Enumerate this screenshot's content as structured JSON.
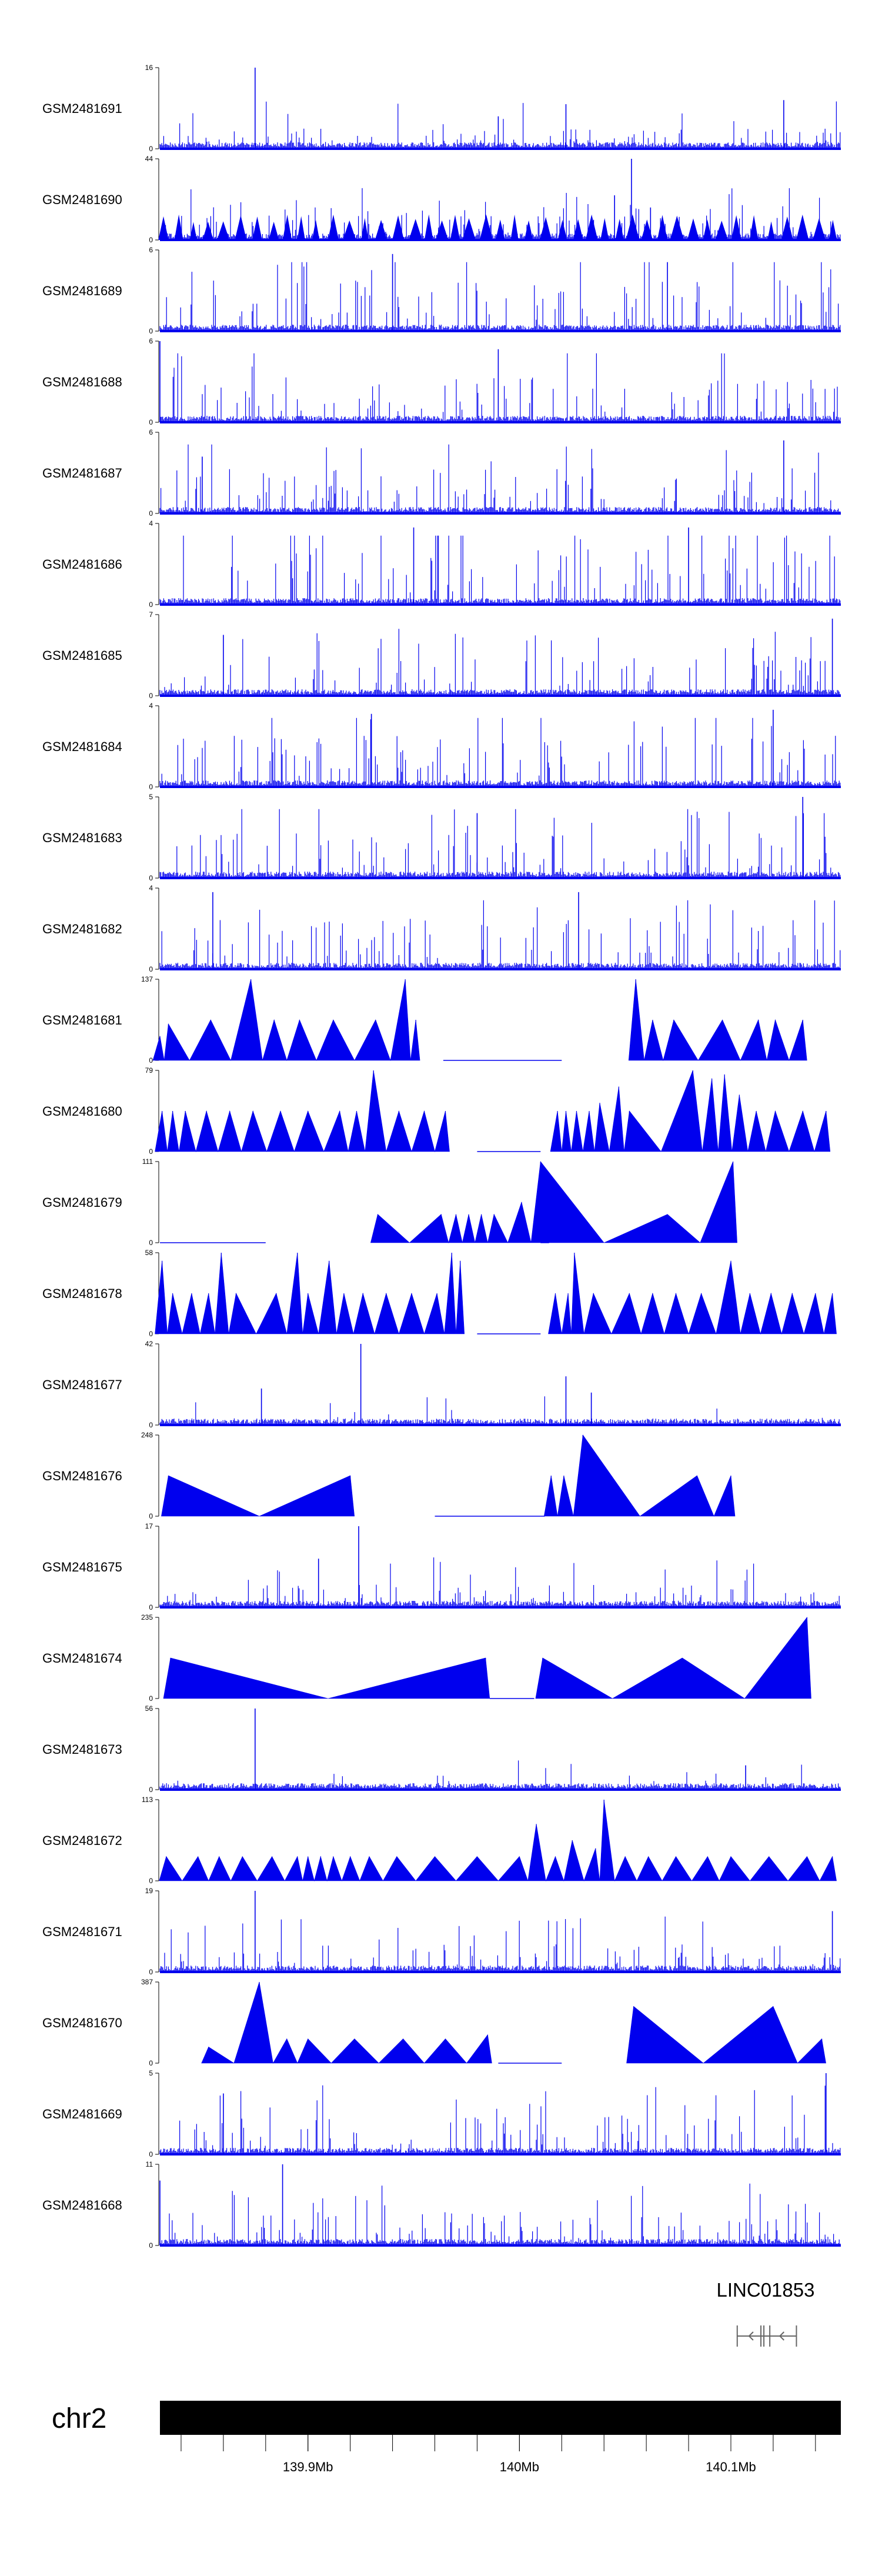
{
  "colors": {
    "signal": "#0000ee",
    "axis": "#000000",
    "ideogram": "#000000",
    "gene": "#666666",
    "background": "#ffffff"
  },
  "gene": {
    "name": "LINC01853",
    "start_mb": 140.103,
    "end_mb": 140.131
  },
  "chromosome": {
    "name": "chr2"
  },
  "chart_data": {
    "type": "area",
    "xlabel": "",
    "xlim_mb": [
      139.83,
      140.152
    ],
    "x_ticks": [
      {
        "value": 139.9,
        "label": "139.9Mb"
      },
      {
        "value": 140.0,
        "label": "140Mb"
      },
      {
        "value": 140.1,
        "label": "140.1Mb"
      }
    ],
    "minor_ticks_mb": [
      139.84,
      139.86,
      139.88,
      139.9,
      139.92,
      139.94,
      139.96,
      139.98,
      140.0,
      140.02,
      140.04,
      140.06,
      140.08,
      140.1,
      140.12,
      140.14
    ],
    "tracks": [
      {
        "name": "GSM2481691",
        "ymax": "16",
        "ymin": "0",
        "style": "dense",
        "level": 0.18,
        "peaks": [
          {
            "x": 139.875,
            "y": 1.0
          },
          {
            "x": 140.022,
            "y": 0.55
          },
          {
            "x": 140.125,
            "y": 0.6
          },
          {
            "x": 139.99,
            "y": 0.4
          }
        ]
      },
      {
        "name": "GSM2481690",
        "ymax": "44",
        "ymin": "0",
        "style": "mixed",
        "level": 0.22,
        "peaks": [
          {
            "x": 140.053,
            "y": 1.0
          },
          {
            "x": 140.045,
            "y": 0.55
          },
          {
            "x": 140.062,
            "y": 0.4
          }
        ]
      },
      {
        "name": "GSM2481689",
        "ymax": "6",
        "ymin": "0",
        "style": "dense",
        "level": 0.45,
        "peaks": [
          {
            "x": 139.94,
            "y": 0.95
          },
          {
            "x": 140.07,
            "y": 0.85
          }
        ]
      },
      {
        "name": "GSM2481688",
        "ymax": "6",
        "ymin": "0",
        "style": "dense",
        "level": 0.42,
        "peaks": [
          {
            "x": 139.83,
            "y": 1.0
          },
          {
            "x": 139.99,
            "y": 0.9
          }
        ]
      },
      {
        "name": "GSM2481687",
        "ymax": "6",
        "ymin": "0",
        "style": "dense",
        "level": 0.4,
        "peaks": [
          {
            "x": 140.125,
            "y": 0.9
          },
          {
            "x": 139.85,
            "y": 0.7
          }
        ]
      },
      {
        "name": "GSM2481686",
        "ymax": "4",
        "ymin": "0",
        "style": "dense",
        "level": 0.5,
        "peaks": [
          {
            "x": 139.95,
            "y": 0.95
          },
          {
            "x": 140.08,
            "y": 0.95
          }
        ]
      },
      {
        "name": "GSM2481685",
        "ymax": "7",
        "ymin": "0",
        "style": "dense",
        "level": 0.35,
        "peaks": [
          {
            "x": 140.148,
            "y": 0.95
          },
          {
            "x": 139.86,
            "y": 0.75
          }
        ]
      },
      {
        "name": "GSM2481684",
        "ymax": "4",
        "ymin": "0",
        "style": "dense",
        "level": 0.45,
        "peaks": [
          {
            "x": 140.12,
            "y": 0.95
          },
          {
            "x": 139.93,
            "y": 0.9
          }
        ]
      },
      {
        "name": "GSM2481683",
        "ymax": "5",
        "ymin": "0",
        "style": "dense",
        "level": 0.4,
        "peaks": [
          {
            "x": 140.134,
            "y": 1.0
          },
          {
            "x": 139.98,
            "y": 0.8
          }
        ]
      },
      {
        "name": "GSM2481682",
        "ymax": "4",
        "ymin": "0",
        "style": "dense",
        "level": 0.45,
        "peaks": [
          {
            "x": 139.855,
            "y": 0.95
          },
          {
            "x": 140.028,
            "y": 0.95
          }
        ]
      },
      {
        "name": "GSM2481681",
        "ymax": "137",
        "ymin": "0",
        "style": "triangles",
        "level": 0,
        "peaks": [
          {
            "x": 139.83,
            "y": 0.3
          },
          {
            "x": 139.834,
            "y": 0.45
          },
          {
            "x": 139.854,
            "y": 0.5
          },
          {
            "x": 139.873,
            "y": 1.0
          },
          {
            "x": 139.884,
            "y": 0.5
          },
          {
            "x": 139.896,
            "y": 0.5
          },
          {
            "x": 139.912,
            "y": 0.5
          },
          {
            "x": 139.932,
            "y": 0.5
          },
          {
            "x": 139.946,
            "y": 1.0
          },
          {
            "x": 139.951,
            "y": 0.5
          },
          {
            "x": 140.055,
            "y": 1.0
          },
          {
            "x": 140.063,
            "y": 0.5
          },
          {
            "x": 140.073,
            "y": 0.5
          },
          {
            "x": 140.096,
            "y": 0.5
          },
          {
            "x": 140.113,
            "y": 0.5
          },
          {
            "x": 140.121,
            "y": 0.5
          },
          {
            "x": 140.134,
            "y": 0.5
          }
        ],
        "gaps": [
          [
            139.964,
            140.02
          ]
        ]
      },
      {
        "name": "GSM2481680",
        "ymax": "79",
        "ymin": "0",
        "style": "triangles",
        "level": 0,
        "peaks": [
          {
            "x": 139.831,
            "y": 0.5
          },
          {
            "x": 139.836,
            "y": 0.5
          },
          {
            "x": 139.842,
            "y": 0.5
          },
          {
            "x": 139.852,
            "y": 0.5
          },
          {
            "x": 139.863,
            "y": 0.5
          },
          {
            "x": 139.874,
            "y": 0.5
          },
          {
            "x": 139.887,
            "y": 0.5
          },
          {
            "x": 139.9,
            "y": 0.5
          },
          {
            "x": 139.915,
            "y": 0.5
          },
          {
            "x": 139.923,
            "y": 0.5
          },
          {
            "x": 139.931,
            "y": 1.0
          },
          {
            "x": 139.943,
            "y": 0.5
          },
          {
            "x": 139.955,
            "y": 0.5
          },
          {
            "x": 139.965,
            "y": 0.5
          },
          {
            "x": 140.018,
            "y": 0.5
          },
          {
            "x": 140.022,
            "y": 0.5
          },
          {
            "x": 140.027,
            "y": 0.5
          },
          {
            "x": 140.033,
            "y": 0.5
          },
          {
            "x": 140.038,
            "y": 0.6
          },
          {
            "x": 140.047,
            "y": 0.8
          },
          {
            "x": 140.052,
            "y": 0.5
          },
          {
            "x": 140.082,
            "y": 1.0
          },
          {
            "x": 140.091,
            "y": 0.9
          },
          {
            "x": 140.097,
            "y": 0.95
          },
          {
            "x": 140.104,
            "y": 0.7
          },
          {
            "x": 140.112,
            "y": 0.5
          },
          {
            "x": 140.121,
            "y": 0.5
          },
          {
            "x": 140.134,
            "y": 0.5
          },
          {
            "x": 140.145,
            "y": 0.5
          }
        ],
        "gaps": [
          [
            139.98,
            140.01
          ]
        ]
      },
      {
        "name": "GSM2481679",
        "ymax": "111",
        "ymin": "0",
        "style": "triangles",
        "level": 0,
        "peaks": [
          {
            "x": 139.933,
            "y": 0.35
          },
          {
            "x": 139.963,
            "y": 0.35
          },
          {
            "x": 139.97,
            "y": 0.35
          },
          {
            "x": 139.976,
            "y": 0.35
          },
          {
            "x": 139.982,
            "y": 0.35
          },
          {
            "x": 139.988,
            "y": 0.35
          },
          {
            "x": 140.001,
            "y": 0.5
          },
          {
            "x": 140.01,
            "y": 1.0
          },
          {
            "x": 140.07,
            "y": 0.35
          },
          {
            "x": 140.101,
            "y": 1.0
          }
        ],
        "gaps": [
          [
            140.01,
            140.014
          ],
          [
            139.83,
            139.88
          ]
        ]
      },
      {
        "name": "GSM2481678",
        "ymax": "58",
        "ymin": "0",
        "style": "triangles",
        "level": 0,
        "peaks": [
          {
            "x": 139.831,
            "y": 0.9
          },
          {
            "x": 139.836,
            "y": 0.5
          },
          {
            "x": 139.845,
            "y": 0.5
          },
          {
            "x": 139.853,
            "y": 0.5
          },
          {
            "x": 139.859,
            "y": 1.0
          },
          {
            "x": 139.866,
            "y": 0.5
          },
          {
            "x": 139.885,
            "y": 0.5
          },
          {
            "x": 139.895,
            "y": 1.0
          },
          {
            "x": 139.9,
            "y": 0.5
          },
          {
            "x": 139.91,
            "y": 0.9
          },
          {
            "x": 139.917,
            "y": 0.5
          },
          {
            "x": 139.926,
            "y": 0.5
          },
          {
            "x": 139.937,
            "y": 0.5
          },
          {
            "x": 139.949,
            "y": 0.5
          },
          {
            "x": 139.961,
            "y": 0.5
          },
          {
            "x": 139.968,
            "y": 1.0
          },
          {
            "x": 139.972,
            "y": 0.9
          },
          {
            "x": 140.017,
            "y": 0.5
          },
          {
            "x": 140.023,
            "y": 0.5
          },
          {
            "x": 140.026,
            "y": 1.0
          },
          {
            "x": 140.035,
            "y": 0.5
          },
          {
            "x": 140.052,
            "y": 0.5
          },
          {
            "x": 140.063,
            "y": 0.5
          },
          {
            "x": 140.074,
            "y": 0.5
          },
          {
            "x": 140.086,
            "y": 0.5
          },
          {
            "x": 140.1,
            "y": 0.9
          },
          {
            "x": 140.109,
            "y": 0.5
          },
          {
            "x": 140.119,
            "y": 0.5
          },
          {
            "x": 140.129,
            "y": 0.5
          },
          {
            "x": 140.14,
            "y": 0.5
          },
          {
            "x": 140.148,
            "y": 0.5
          }
        ],
        "gaps": [
          [
            139.98,
            140.01
          ]
        ]
      },
      {
        "name": "GSM2481677",
        "ymax": "42",
        "ymin": "0",
        "style": "dense",
        "level": 0.05,
        "peaks": [
          {
            "x": 139.878,
            "y": 0.45
          },
          {
            "x": 139.925,
            "y": 1.0
          },
          {
            "x": 140.022,
            "y": 0.6
          },
          {
            "x": 140.034,
            "y": 0.4
          }
        ]
      },
      {
        "name": "GSM2481676",
        "ymax": "248",
        "ymin": "0",
        "style": "triangles",
        "level": 0,
        "peaks": [
          {
            "x": 139.834,
            "y": 0.5
          },
          {
            "x": 139.92,
            "y": 0.5
          },
          {
            "x": 140.015,
            "y": 0.5
          },
          {
            "x": 140.021,
            "y": 0.5
          },
          {
            "x": 140.03,
            "y": 1.0
          },
          {
            "x": 140.084,
            "y": 0.5
          },
          {
            "x": 140.1,
            "y": 0.5
          }
        ],
        "gaps": [
          [
            139.96,
            140.012
          ]
        ]
      },
      {
        "name": "GSM2481675",
        "ymax": "17",
        "ymin": "0",
        "style": "dense",
        "level": 0.2,
        "peaks": [
          {
            "x": 139.924,
            "y": 1.0
          },
          {
            "x": 139.905,
            "y": 0.6
          }
        ]
      },
      {
        "name": "GSM2481674",
        "ymax": "235",
        "ymin": "0",
        "style": "triangles",
        "level": 0,
        "peaks": [
          {
            "x": 139.835,
            "y": 0.5
          },
          {
            "x": 139.984,
            "y": 0.5
          },
          {
            "x": 140.011,
            "y": 0.5
          },
          {
            "x": 140.077,
            "y": 0.5
          },
          {
            "x": 140.136,
            "y": 1.0
          }
        ],
        "gaps": [
          [
            139.986,
            140.007
          ]
        ]
      },
      {
        "name": "GSM2481673",
        "ymax": "56",
        "ymin": "0",
        "style": "dense",
        "level": 0.04,
        "peaks": [
          {
            "x": 139.875,
            "y": 1.0
          },
          {
            "x": 140.107,
            "y": 0.3
          }
        ]
      },
      {
        "name": "GSM2481672",
        "ymax": "113",
        "ymin": "0",
        "style": "triangles",
        "level": 0,
        "peaks": [
          {
            "x": 139.833,
            "y": 0.3
          },
          {
            "x": 139.848,
            "y": 0.3
          },
          {
            "x": 139.858,
            "y": 0.3
          },
          {
            "x": 139.869,
            "y": 0.3
          },
          {
            "x": 139.883,
            "y": 0.3
          },
          {
            "x": 139.895,
            "y": 0.3
          },
          {
            "x": 139.9,
            "y": 0.3
          },
          {
            "x": 139.906,
            "y": 0.3
          },
          {
            "x": 139.912,
            "y": 0.3
          },
          {
            "x": 139.92,
            "y": 0.3
          },
          {
            "x": 139.929,
            "y": 0.3
          },
          {
            "x": 139.942,
            "y": 0.3
          },
          {
            "x": 139.96,
            "y": 0.3
          },
          {
            "x": 139.98,
            "y": 0.3
          },
          {
            "x": 140.0,
            "y": 0.3
          },
          {
            "x": 140.008,
            "y": 0.7
          },
          {
            "x": 140.017,
            "y": 0.3
          },
          {
            "x": 140.025,
            "y": 0.5
          },
          {
            "x": 140.036,
            "y": 0.4
          },
          {
            "x": 140.04,
            "y": 1.0
          },
          {
            "x": 140.05,
            "y": 0.3
          },
          {
            "x": 140.061,
            "y": 0.3
          },
          {
            "x": 140.074,
            "y": 0.3
          },
          {
            "x": 140.089,
            "y": 0.3
          },
          {
            "x": 140.1,
            "y": 0.3
          },
          {
            "x": 140.118,
            "y": 0.3
          },
          {
            "x": 140.136,
            "y": 0.3
          },
          {
            "x": 140.148,
            "y": 0.3
          }
        ],
        "gaps": []
      },
      {
        "name": "GSM2481671",
        "ymax": "19",
        "ymin": "0",
        "style": "dense",
        "level": 0.25,
        "peaks": [
          {
            "x": 139.875,
            "y": 1.0
          },
          {
            "x": 140.148,
            "y": 0.75
          }
        ]
      },
      {
        "name": "GSM2481670",
        "ymax": "387",
        "ymin": "0",
        "style": "triangles",
        "level": 0,
        "peaks": [
          {
            "x": 139.853,
            "y": 0.2
          },
          {
            "x": 139.877,
            "y": 1.0
          },
          {
            "x": 139.89,
            "y": 0.3
          },
          {
            "x": 139.9,
            "y": 0.3
          },
          {
            "x": 139.922,
            "y": 0.3
          },
          {
            "x": 139.945,
            "y": 0.3
          },
          {
            "x": 139.965,
            "y": 0.3
          },
          {
            "x": 139.985,
            "y": 0.35
          },
          {
            "x": 140.054,
            "y": 0.7
          },
          {
            "x": 140.12,
            "y": 0.7
          },
          {
            "x": 140.143,
            "y": 0.3
          }
        ],
        "gaps": [
          [
            139.99,
            140.02
          ]
        ]
      },
      {
        "name": "GSM2481669",
        "ymax": "5",
        "ymin": "0",
        "style": "dense",
        "level": 0.35,
        "peaks": [
          {
            "x": 140.145,
            "y": 1.0
          },
          {
            "x": 139.86,
            "y": 0.75
          }
        ]
      },
      {
        "name": "GSM2481668",
        "ymax": "11",
        "ymin": "0",
        "style": "dense",
        "level": 0.3,
        "peaks": [
          {
            "x": 139.888,
            "y": 1.0
          },
          {
            "x": 139.83,
            "y": 0.8
          }
        ]
      }
    ]
  }
}
